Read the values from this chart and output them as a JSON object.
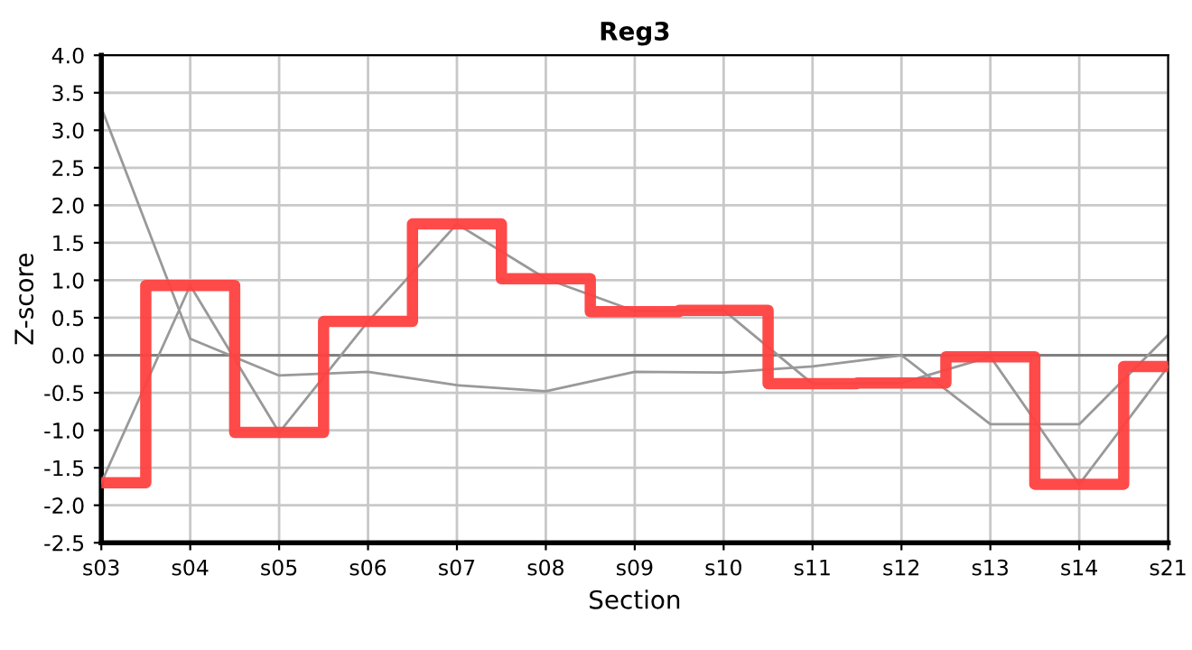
{
  "chart_data": {
    "type": "line",
    "title": "Reg3",
    "xlabel": "Section",
    "ylabel": "Z-score",
    "categories": [
      "s03",
      "s04",
      "s05",
      "s06",
      "s07",
      "s08",
      "s09",
      "s10",
      "s11",
      "s12",
      "s13",
      "s14",
      "s21"
    ],
    "series": [
      {
        "color": "#999999",
        "values": [
          3.3,
          0.22,
          -0.27,
          -0.22,
          -0.4,
          -0.48,
          -0.22,
          -0.23,
          -0.15,
          0.0,
          -0.92,
          -0.92,
          0.27
        ]
      },
      {
        "color": "#999999",
        "values": [
          -1.7,
          0.93,
          -1.03,
          0.45,
          1.75,
          1.02,
          0.59,
          0.6,
          -0.38,
          -0.37,
          -0.02,
          -1.72,
          -0.15
        ]
      },
      {
        "type": "step",
        "color": "#ff4040",
        "values": [
          -1.7,
          0.93,
          -1.03,
          0.45,
          1.75,
          1.02,
          0.58,
          0.6,
          -0.38,
          -0.37,
          -0.02,
          -1.72,
          -0.15
        ]
      }
    ],
    "ylim": [
      -2.5,
      4.0
    ],
    "yticks": [
      {
        "value": -2.5,
        "label": "-2.5"
      },
      {
        "value": -2.0,
        "label": "-2.0"
      },
      {
        "value": -1.5,
        "label": "-1.5"
      },
      {
        "value": -1.0,
        "label": "-1.0"
      },
      {
        "value": -0.5,
        "label": "-0.5"
      },
      {
        "value": 0.0,
        "label": "0.0"
      },
      {
        "value": 0.5,
        "label": "0.5"
      },
      {
        "value": 1.0,
        "label": "1.0"
      },
      {
        "value": 1.5,
        "label": "1.5"
      },
      {
        "value": 2.0,
        "label": "2.0"
      },
      {
        "value": 2.5,
        "label": "2.5"
      },
      {
        "value": 3.0,
        "label": "3.0"
      },
      {
        "value": 3.5,
        "label": "3.5"
      },
      {
        "value": 4.0,
        "label": "4.0"
      }
    ],
    "ref_lines": [
      {
        "axis": "y",
        "value": 0,
        "color": "#808080"
      }
    ],
    "grid": true
  }
}
